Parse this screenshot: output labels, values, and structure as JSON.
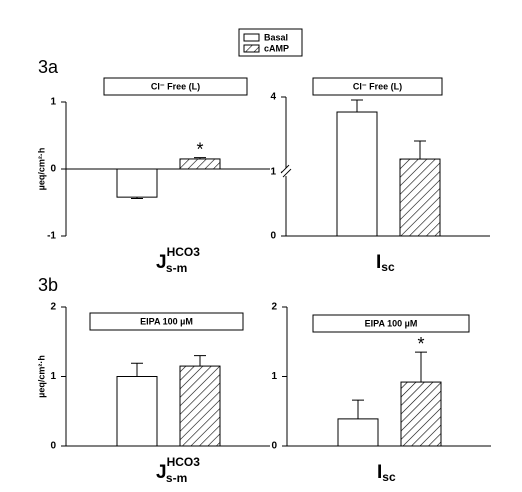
{
  "panels": [
    "3a",
    "3b"
  ],
  "chart_data": [
    {
      "type": "bar",
      "title": "Cl⁻ Free (L)",
      "y_label": "µeq/cm²·h",
      "x_label": {
        "main": "J",
        "sub": "s-m",
        "sup": "HCO3"
      },
      "ylim": [
        -1,
        1
      ],
      "yticks": [
        -1,
        0,
        1
      ],
      "series": [
        {
          "name": "Basal",
          "color": "#ffffff",
          "values": [
            -0.42
          ],
          "errors": [
            0.02
          ]
        },
        {
          "name": "cAMP",
          "color": "#ffffff",
          "pattern": "hatch",
          "values": [
            0.15
          ],
          "errors": [
            0.02
          ]
        }
      ],
      "annotations": [
        {
          "text": "*",
          "series": 1,
          "index": 0
        }
      ]
    },
    {
      "type": "bar",
      "title": "Cl⁻ Free (L)",
      "x_label": {
        "main": "I",
        "sub": "sc"
      },
      "ylim": [
        0,
        4
      ],
      "yticks": [
        0,
        1,
        4
      ],
      "axis_break": 1,
      "series": [
        {
          "name": "Basal",
          "color": "#ffffff",
          "values": [
            3.4
          ],
          "errors": [
            0.48
          ]
        },
        {
          "name": "cAMP",
          "color": "#ffffff",
          "pattern": "hatch",
          "values": [
            1.52
          ],
          "errors": [
            0.72
          ]
        }
      ]
    },
    {
      "type": "bar",
      "title": "EIPA 100 µM",
      "y_label": "µeq/cm²·h",
      "x_label": {
        "main": "J",
        "sub": "s-m",
        "sup": "HCO3"
      },
      "ylim": [
        0,
        2
      ],
      "yticks": [
        0,
        1,
        2
      ],
      "series": [
        {
          "name": "Basal",
          "color": "#ffffff",
          "values": [
            1.0
          ],
          "errors": [
            0.19
          ]
        },
        {
          "name": "cAMP",
          "color": "#ffffff",
          "pattern": "hatch",
          "values": [
            1.15
          ],
          "errors": [
            0.15
          ]
        }
      ]
    },
    {
      "type": "bar",
      "title": "EIPA 100 µM",
      "x_label": {
        "main": "I",
        "sub": "sc"
      },
      "ylim": [
        0,
        2
      ],
      "yticks": [
        0,
        1,
        2
      ],
      "series": [
        {
          "name": "Basal",
          "color": "#ffffff",
          "values": [
            0.39
          ],
          "errors": [
            0.27
          ]
        },
        {
          "name": "cAMP",
          "color": "#ffffff",
          "pattern": "hatch",
          "values": [
            0.92
          ],
          "errors": [
            0.43
          ]
        }
      ],
      "annotations": [
        {
          "text": "*",
          "series": 1,
          "index": 0
        }
      ]
    }
  ]
}
